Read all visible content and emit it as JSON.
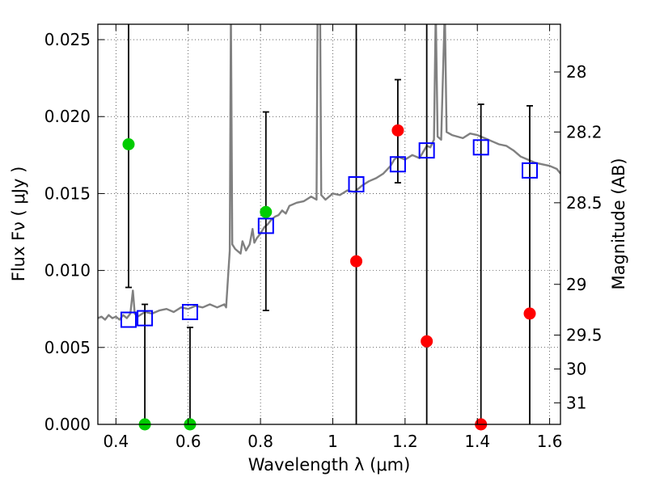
{
  "chart_data": {
    "type": "scatter",
    "title": "",
    "xlabel": "Wavelength  λ (μm)",
    "ylabel": "Flux  Fν  ( μJy )",
    "ylabel_right": "Magnitude (AB)",
    "xlim": [
      0.35,
      1.63
    ],
    "ylim": [
      0.0,
      0.026
    ],
    "grid": true,
    "colors": {
      "spectrum": "#808080",
      "green": "#00cc00",
      "red": "#ff0000",
      "blue": "#0000ff",
      "axis": "#000000"
    },
    "x_ticks": [
      {
        "value": 0.4,
        "label": "0.4"
      },
      {
        "value": 0.6,
        "label": "0.6"
      },
      {
        "value": 0.8,
        "label": "0.8"
      },
      {
        "value": 1.0,
        "label": "1"
      },
      {
        "value": 1.2,
        "label": "1.2"
      },
      {
        "value": 1.4,
        "label": "1.4"
      },
      {
        "value": 1.6,
        "label": "1.6"
      }
    ],
    "y_ticks": [
      {
        "value": 0.0,
        "label": "0.000"
      },
      {
        "value": 0.005,
        "label": "0.005"
      },
      {
        "value": 0.01,
        "label": "0.010"
      },
      {
        "value": 0.015,
        "label": "0.015"
      },
      {
        "value": 0.02,
        "label": "0.020"
      },
      {
        "value": 0.025,
        "label": "0.025"
      }
    ],
    "right_ticks": [
      {
        "label": "28",
        "flux": 0.0229
      },
      {
        "label": "28.2",
        "flux": 0.019
      },
      {
        "label": "28.5",
        "flux": 0.0144
      },
      {
        "label": "29",
        "flux": 0.0091
      },
      {
        "label": "29.5",
        "flux": 0.0058
      },
      {
        "label": "30",
        "flux": 0.0036
      },
      {
        "label": "31",
        "flux": 0.0014
      }
    ],
    "spectrum": [
      [
        0.35,
        0.0069
      ],
      [
        0.36,
        0.007
      ],
      [
        0.37,
        0.0068
      ],
      [
        0.38,
        0.0071
      ],
      [
        0.39,
        0.0069
      ],
      [
        0.4,
        0.007
      ],
      [
        0.41,
        0.0068
      ],
      [
        0.42,
        0.0071
      ],
      [
        0.43,
        0.0069
      ],
      [
        0.44,
        0.0072
      ],
      [
        0.447,
        0.0087
      ],
      [
        0.452,
        0.0072
      ],
      [
        0.46,
        0.007
      ],
      [
        0.48,
        0.0073
      ],
      [
        0.5,
        0.0072
      ],
      [
        0.52,
        0.0074
      ],
      [
        0.54,
        0.0075
      ],
      [
        0.56,
        0.0073
      ],
      [
        0.58,
        0.0076
      ],
      [
        0.6,
        0.0075
      ],
      [
        0.62,
        0.0077
      ],
      [
        0.64,
        0.0076
      ],
      [
        0.66,
        0.0078
      ],
      [
        0.68,
        0.0076
      ],
      [
        0.7,
        0.0078
      ],
      [
        0.705,
        0.0076
      ],
      [
        0.71,
        0.0095
      ],
      [
        0.715,
        0.0113
      ],
      [
        0.718,
        0.027
      ],
      [
        0.722,
        0.0117
      ],
      [
        0.73,
        0.0114
      ],
      [
        0.745,
        0.0111
      ],
      [
        0.75,
        0.0119
      ],
      [
        0.76,
        0.0113
      ],
      [
        0.77,
        0.0117
      ],
      [
        0.778,
        0.0127
      ],
      [
        0.783,
        0.0118
      ],
      [
        0.79,
        0.0121
      ],
      [
        0.8,
        0.0124
      ],
      [
        0.81,
        0.0128
      ],
      [
        0.82,
        0.013
      ],
      [
        0.83,
        0.0133
      ],
      [
        0.84,
        0.0135
      ],
      [
        0.85,
        0.0136
      ],
      [
        0.86,
        0.0139
      ],
      [
        0.87,
        0.0137
      ],
      [
        0.88,
        0.0142
      ],
      [
        0.9,
        0.0144
      ],
      [
        0.92,
        0.0145
      ],
      [
        0.94,
        0.0148
      ],
      [
        0.955,
        0.0146
      ],
      [
        0.958,
        0.027
      ],
      [
        0.965,
        0.027
      ],
      [
        0.968,
        0.0149
      ],
      [
        0.98,
        0.0146
      ],
      [
        1.0,
        0.015
      ],
      [
        1.02,
        0.0149
      ],
      [
        1.04,
        0.0152
      ],
      [
        1.06,
        0.0151
      ],
      [
        1.08,
        0.0155
      ],
      [
        1.1,
        0.0158
      ],
      [
        1.12,
        0.016
      ],
      [
        1.14,
        0.0163
      ],
      [
        1.16,
        0.0168
      ],
      [
        1.17,
        0.0172
      ],
      [
        1.18,
        0.0174
      ],
      [
        1.2,
        0.0172
      ],
      [
        1.22,
        0.0175
      ],
      [
        1.24,
        0.0173
      ],
      [
        1.25,
        0.0177
      ],
      [
        1.26,
        0.0181
      ],
      [
        1.27,
        0.018
      ],
      [
        1.28,
        0.0185
      ],
      [
        1.285,
        0.027
      ],
      [
        1.29,
        0.0187
      ],
      [
        1.3,
        0.0185
      ],
      [
        1.31,
        0.027
      ],
      [
        1.315,
        0.019
      ],
      [
        1.33,
        0.0188
      ],
      [
        1.36,
        0.0186
      ],
      [
        1.38,
        0.0189
      ],
      [
        1.4,
        0.0188
      ],
      [
        1.42,
        0.0186
      ],
      [
        1.44,
        0.0184
      ],
      [
        1.46,
        0.0182
      ],
      [
        1.48,
        0.0181
      ],
      [
        1.5,
        0.0178
      ],
      [
        1.52,
        0.0174
      ],
      [
        1.54,
        0.0172
      ],
      [
        1.56,
        0.017
      ],
      [
        1.58,
        0.0169
      ],
      [
        1.6,
        0.0168
      ],
      [
        1.62,
        0.0166
      ],
      [
        1.63,
        0.0163
      ]
    ],
    "model_points": [
      {
        "x": 0.435,
        "y": 0.0068
      },
      {
        "x": 0.48,
        "y": 0.0069
      },
      {
        "x": 0.605,
        "y": 0.0073
      },
      {
        "x": 0.815,
        "y": 0.0129
      },
      {
        "x": 1.065,
        "y": 0.0156
      },
      {
        "x": 1.18,
        "y": 0.0169
      },
      {
        "x": 1.26,
        "y": 0.0178
      },
      {
        "x": 1.41,
        "y": 0.018
      },
      {
        "x": 1.545,
        "y": 0.0165
      }
    ],
    "observed_green": [
      {
        "x": 0.435,
        "y": 0.0182,
        "err_low": 0.0089,
        "err_high": 0.0265
      },
      {
        "x": 0.48,
        "y": 0.0,
        "err_low": 0.0,
        "err_high": 0.0078
      },
      {
        "x": 0.605,
        "y": 0.0,
        "err_low": 0.0,
        "err_high": 0.0063
      },
      {
        "x": 0.815,
        "y": 0.0138,
        "err_low": 0.0074,
        "err_high": 0.0203
      }
    ],
    "observed_red": [
      {
        "x": 1.065,
        "y": 0.0106,
        "err_low": 0.0,
        "err_high": 0.0265
      },
      {
        "x": 1.18,
        "y": 0.0191,
        "err_low": 0.0157,
        "err_high": 0.0224
      },
      {
        "x": 1.26,
        "y": 0.0054,
        "err_low": 0.0,
        "err_high": 0.0265
      },
      {
        "x": 1.41,
        "y": 0.0,
        "err_low": 0.0,
        "err_high": 0.0208
      },
      {
        "x": 1.545,
        "y": 0.0072,
        "err_low": 0.0,
        "err_high": 0.0207
      }
    ]
  }
}
